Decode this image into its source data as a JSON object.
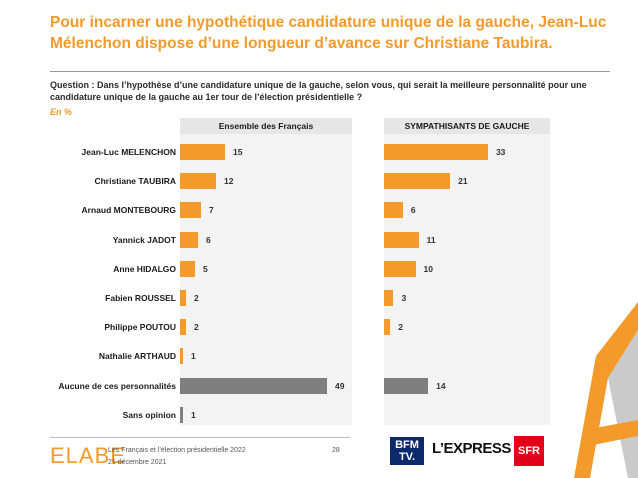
{
  "title": "Pour incarner une hypothétique candidature unique de la gauche, Jean-Luc Mélenchon dispose d’une longueur d’avance sur Christiane Taubira.",
  "question": "Question : Dans l’hypothèse d’une candidature unique de la gauche, selon vous, qui serait la meilleure personnalité pour une candidature unique de la gauche au 1er tour de l’élection présidentielle ?",
  "unit": "En %",
  "colors": {
    "accent": "#f39a2b",
    "grey_bar": "#7f7f7f"
  },
  "chart_data": {
    "type": "bar",
    "orientation": "horizontal",
    "categories": [
      "Jean-Luc MELENCHON",
      "Christiane TAUBIRA",
      "Arnaud MONTEBOURG",
      "Yannick JADOT",
      "Anne HIDALGO",
      "Fabien ROUSSEL",
      "Philippe POUTOU",
      "Nathalie ARTHAUD",
      "Aucune de ces personnalités",
      "Sans opinion"
    ],
    "series": [
      {
        "name": "Ensemble des Français",
        "values": [
          15,
          12,
          7,
          6,
          5,
          2,
          2,
          1,
          49,
          1
        ]
      },
      {
        "name": "SYMPATHISANTS DE GAUCHE",
        "values": [
          33,
          21,
          6,
          11,
          10,
          3,
          2,
          null,
          14,
          null
        ]
      }
    ],
    "grey_categories": [
      "Aucune de ces personnalités",
      "Sans opinion"
    ],
    "xlim": [
      0,
      52
    ]
  },
  "footer": {
    "logo": "ELABE",
    "source": "Les Français et l’élection présidentielle 2022",
    "date": "21 décembre 2021",
    "page": "28"
  },
  "partners": {
    "bfm_line1": "BFM",
    "bfm_line2": "TV.",
    "express": "L’EXPRESS",
    "sfr": "SFR"
  }
}
